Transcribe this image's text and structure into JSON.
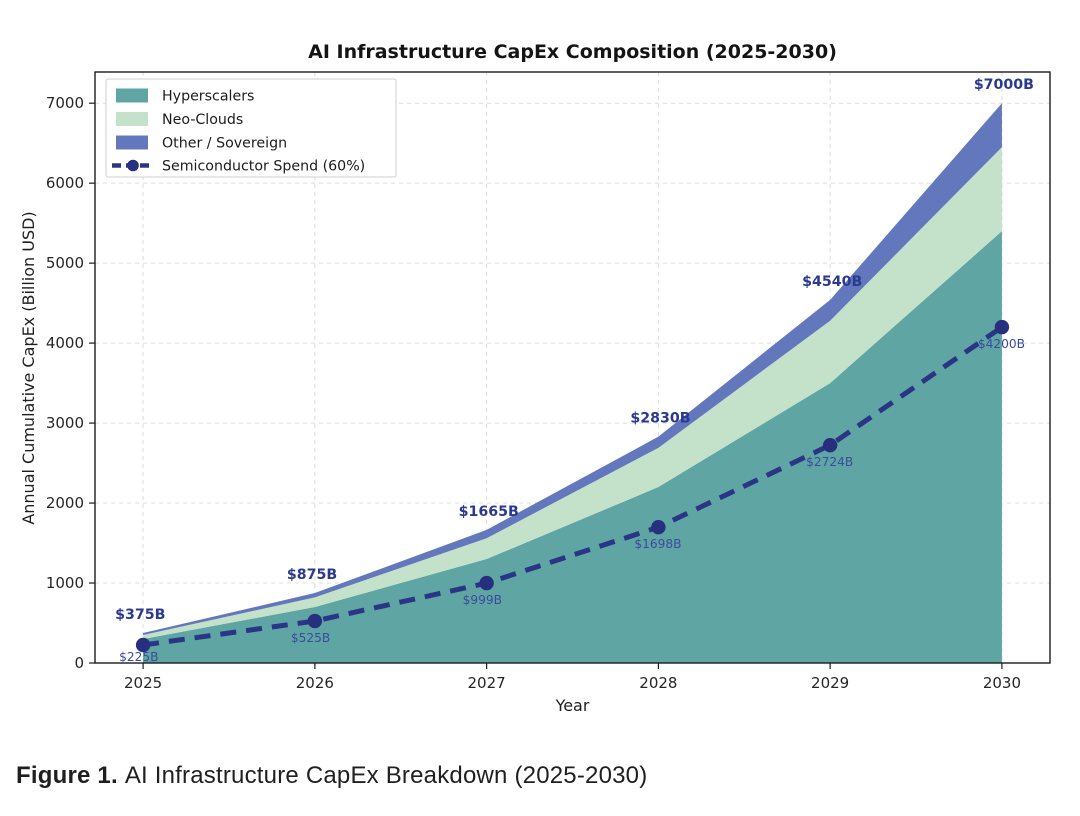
{
  "figure": {
    "caption_label": "Figure 1.",
    "caption_text": "AI Infrastructure CapEx Breakdown (2025-2030)"
  },
  "chart_data": {
    "type": "area",
    "title": "AI Infrastructure CapEx Composition (2025-2030)",
    "xlabel": "Year",
    "ylabel": "Annual Cumulative CapEx (Billion USD)",
    "categories": [
      2025,
      2026,
      2027,
      2028,
      2029,
      2030
    ],
    "stacked_series": [
      {
        "name": "Hyperscalers",
        "color": "#5ea5a4",
        "values": [
          300,
          700,
          1300,
          2200,
          3500,
          5400
        ]
      },
      {
        "name": "Neo-Clouds",
        "color": "#c4e1c9",
        "values": [
          50,
          120,
          260,
          490,
          780,
          1050
        ]
      },
      {
        "name": "Other / Sovereign",
        "color": "#6378bc",
        "values": [
          25,
          55,
          105,
          140,
          260,
          550
        ]
      }
    ],
    "totals": [
      375,
      875,
      1665,
      2830,
      4540,
      7000
    ],
    "total_labels": [
      "$375B",
      "$875B",
      "$1665B",
      "$2830B",
      "$4540B",
      "$7000B"
    ],
    "line_series": {
      "name": "Semiconductor Spend (60%)",
      "color": "#2b3585",
      "marker_color": "#26307e",
      "style": "dashed",
      "marker": "circle",
      "values": [
        225,
        525,
        999,
        1698,
        2724,
        4200
      ]
    },
    "line_labels": [
      "$225B",
      "$525B",
      "$999B",
      "$1698B",
      "$2724B",
      "$4200B"
    ],
    "y_ticks": [
      0,
      1000,
      2000,
      3000,
      4000,
      5000,
      6000,
      7000
    ],
    "x_tick_labels": [
      "2025",
      "2026",
      "2027",
      "2028",
      "2029",
      "2030"
    ],
    "ylim": [
      0,
      7390
    ],
    "grid": true,
    "legend_position": "upper-left",
    "annotation_color": "#2b3990",
    "line_label_color": "#3c4b9e"
  }
}
